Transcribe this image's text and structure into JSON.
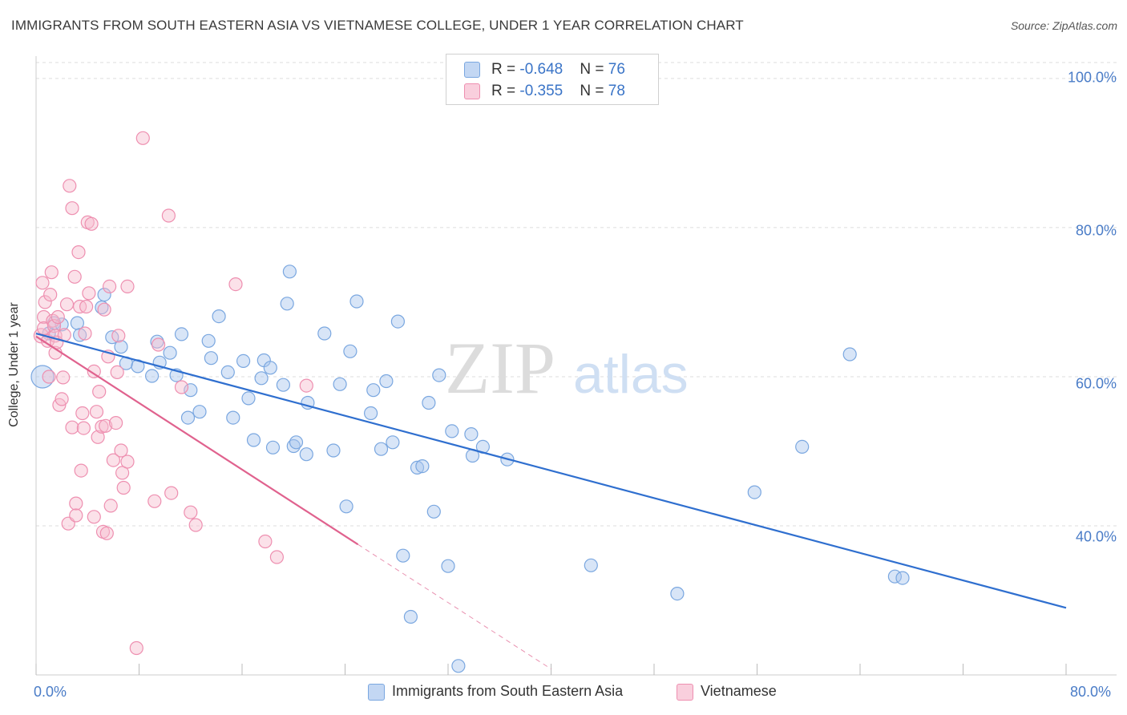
{
  "chart_data": {
    "type": "scatter",
    "title": "IMMIGRANTS FROM SOUTH EASTERN ASIA VS VIETNAMESE COLLEGE, UNDER 1 YEAR CORRELATION CHART",
    "source": "Source: ZipAtlas.com",
    "xlabel": "",
    "ylabel": "College, Under 1 year",
    "xlim": [
      0,
      80
    ],
    "ylim": [
      20,
      103
    ],
    "x_tick_labels": [
      "0.0%",
      "80.0%"
    ],
    "y_ticks": [
      40,
      60,
      80,
      100
    ],
    "y_tick_labels": [
      "40.0%",
      "60.0%",
      "80.0%",
      "100.0%"
    ],
    "grid": true,
    "watermark": {
      "zip": "ZIP",
      "atlas": "atlas"
    },
    "legend": {
      "rows": [
        {
          "r_label": "R = ",
          "r_value": "-0.648",
          "n_label": "N = ",
          "n_value": "76"
        },
        {
          "r_label": "R = ",
          "r_value": "-0.355",
          "n_label": "N = ",
          "n_value": "78"
        }
      ]
    },
    "series": [
      {
        "name": "Immigrants from South Eastern Asia",
        "color": "#7aa7e0",
        "fill": "#a8c6ee",
        "line_color": "#2f6fcf",
        "trend": {
          "x0": 0,
          "y0": 65.8,
          "x1": 80,
          "y1": 29.0
        },
        "points": [
          [
            0.5,
            60.0,
            14
          ],
          [
            1.0,
            65.8,
            8
          ],
          [
            1.4,
            67.2,
            8
          ],
          [
            2.0,
            67.0,
            8
          ],
          [
            3.2,
            67.2,
            8
          ],
          [
            3.4,
            65.6,
            8
          ],
          [
            5.1,
            69.3,
            8
          ],
          [
            5.3,
            71.0,
            8
          ],
          [
            5.9,
            65.3,
            8
          ],
          [
            7.0,
            61.8,
            8
          ],
          [
            6.6,
            64.0,
            8
          ],
          [
            7.9,
            61.4,
            8
          ],
          [
            9.0,
            60.1,
            8
          ],
          [
            9.6,
            61.9,
            8
          ],
          [
            9.4,
            64.7,
            8
          ],
          [
            10.4,
            63.2,
            8
          ],
          [
            11.3,
            65.7,
            8
          ],
          [
            10.9,
            60.2,
            8
          ],
          [
            12.0,
            58.2,
            8
          ],
          [
            11.8,
            54.5,
            8
          ],
          [
            12.7,
            55.3,
            8
          ],
          [
            13.4,
            64.8,
            8
          ],
          [
            13.6,
            62.5,
            8
          ],
          [
            14.2,
            68.1,
            8
          ],
          [
            14.9,
            60.6,
            8
          ],
          [
            15.3,
            54.5,
            8
          ],
          [
            16.1,
            62.1,
            8
          ],
          [
            16.5,
            57.1,
            8
          ],
          [
            16.9,
            51.5,
            8
          ],
          [
            17.5,
            59.8,
            8
          ],
          [
            17.7,
            62.2,
            8
          ],
          [
            18.2,
            61.2,
            8
          ],
          [
            18.4,
            50.5,
            8
          ],
          [
            19.2,
            58.9,
            8
          ],
          [
            19.5,
            69.8,
            8
          ],
          [
            19.7,
            74.1,
            8
          ],
          [
            20.0,
            50.7,
            8
          ],
          [
            20.2,
            51.2,
            8
          ],
          [
            21.0,
            49.6,
            8
          ],
          [
            21.1,
            56.5,
            8
          ],
          [
            22.4,
            65.8,
            8
          ],
          [
            23.1,
            50.1,
            8
          ],
          [
            23.6,
            59.0,
            8
          ],
          [
            24.1,
            42.6,
            8
          ],
          [
            24.4,
            63.4,
            8
          ],
          [
            24.9,
            70.1,
            8
          ],
          [
            26.0,
            55.1,
            8
          ],
          [
            26.2,
            58.2,
            8
          ],
          [
            26.8,
            50.3,
            8
          ],
          [
            27.2,
            59.4,
            8
          ],
          [
            27.7,
            51.2,
            8
          ],
          [
            28.1,
            67.4,
            8
          ],
          [
            28.5,
            36.0,
            8
          ],
          [
            29.1,
            27.8,
            8
          ],
          [
            29.6,
            47.8,
            8
          ],
          [
            30.0,
            48.0,
            8
          ],
          [
            30.5,
            56.5,
            8
          ],
          [
            30.9,
            41.9,
            8
          ],
          [
            31.3,
            60.2,
            8
          ],
          [
            32.0,
            34.6,
            8
          ],
          [
            32.3,
            52.7,
            8
          ],
          [
            32.8,
            21.2,
            8
          ],
          [
            33.8,
            52.3,
            8
          ],
          [
            33.9,
            49.4,
            8
          ],
          [
            34.7,
            50.6,
            8
          ],
          [
            36.6,
            48.9,
            8
          ],
          [
            43.1,
            34.7,
            8
          ],
          [
            49.8,
            30.9,
            8
          ],
          [
            55.8,
            44.5,
            8
          ],
          [
            59.5,
            50.6,
            8
          ],
          [
            63.2,
            63.0,
            8
          ],
          [
            66.7,
            33.2,
            8
          ],
          [
            67.3,
            33.0,
            8
          ]
        ]
      },
      {
        "name": "Vietnamese",
        "color": "#ee8fb0",
        "fill": "#f6bccf",
        "line_color": "#e0628e",
        "trend": {
          "x0": 0,
          "y0": 65.4,
          "x1": 25.0,
          "y1": 37.5
        },
        "trend_ext": {
          "x0": 25.0,
          "y0": 37.5,
          "x1": 40.0,
          "y1": 20.8
        },
        "points": [
          [
            0.4,
            65.5,
            9
          ],
          [
            0.5,
            72.6,
            8
          ],
          [
            0.6,
            68.0,
            8
          ],
          [
            0.6,
            66.5,
            8
          ],
          [
            0.7,
            70.0,
            8
          ],
          [
            0.9,
            64.8,
            8
          ],
          [
            1.0,
            60.0,
            8
          ],
          [
            1.1,
            71.0,
            8
          ],
          [
            1.2,
            74.0,
            8
          ],
          [
            1.3,
            67.5,
            8
          ],
          [
            1.4,
            66.8,
            8
          ],
          [
            1.5,
            65.5,
            8
          ],
          [
            1.5,
            63.2,
            8
          ],
          [
            1.6,
            64.6,
            8
          ],
          [
            1.7,
            68.0,
            8
          ],
          [
            1.8,
            56.2,
            8
          ],
          [
            2.0,
            57.0,
            8
          ],
          [
            2.1,
            59.9,
            8
          ],
          [
            2.2,
            65.6,
            8
          ],
          [
            2.4,
            69.7,
            8
          ],
          [
            2.5,
            40.3,
            8
          ],
          [
            2.6,
            85.6,
            8
          ],
          [
            2.8,
            82.6,
            8
          ],
          [
            2.8,
            53.2,
            8
          ],
          [
            3.0,
            73.4,
            8
          ],
          [
            3.1,
            43.0,
            8
          ],
          [
            3.1,
            41.4,
            8
          ],
          [
            3.3,
            76.7,
            8
          ],
          [
            3.4,
            69.4,
            8
          ],
          [
            3.5,
            47.4,
            8
          ],
          [
            3.6,
            55.1,
            8
          ],
          [
            3.7,
            53.1,
            8
          ],
          [
            3.8,
            65.8,
            8
          ],
          [
            3.9,
            69.4,
            8
          ],
          [
            4.0,
            80.7,
            8
          ],
          [
            4.1,
            71.2,
            8
          ],
          [
            4.3,
            80.5,
            8
          ],
          [
            4.5,
            60.7,
            8
          ],
          [
            4.5,
            41.2,
            8
          ],
          [
            4.7,
            55.3,
            8
          ],
          [
            4.8,
            51.9,
            8
          ],
          [
            4.9,
            58.0,
            8
          ],
          [
            5.1,
            53.3,
            8
          ],
          [
            5.2,
            39.2,
            8
          ],
          [
            5.3,
            69.0,
            8
          ],
          [
            5.4,
            53.4,
            8
          ],
          [
            5.5,
            39.0,
            8
          ],
          [
            5.6,
            62.7,
            8
          ],
          [
            5.7,
            72.1,
            8
          ],
          [
            5.8,
            42.7,
            8
          ],
          [
            6.0,
            48.8,
            8
          ],
          [
            6.2,
            53.8,
            8
          ],
          [
            6.4,
            65.5,
            8
          ],
          [
            6.3,
            60.6,
            8
          ],
          [
            6.6,
            50.1,
            8
          ],
          [
            6.7,
            47.1,
            8
          ],
          [
            6.8,
            45.1,
            8
          ],
          [
            7.1,
            48.6,
            8
          ],
          [
            7.1,
            72.1,
            8
          ],
          [
            8.3,
            92.0,
            8
          ],
          [
            9.2,
            43.3,
            8
          ],
          [
            9.5,
            64.3,
            8
          ],
          [
            10.3,
            81.6,
            8
          ],
          [
            10.5,
            44.4,
            8
          ],
          [
            11.3,
            58.6,
            8
          ],
          [
            12.0,
            41.8,
            8
          ],
          [
            12.4,
            40.1,
            8
          ],
          [
            15.5,
            72.4,
            8
          ],
          [
            17.8,
            37.9,
            8
          ],
          [
            18.7,
            35.8,
            8
          ],
          [
            21.0,
            58.8,
            8
          ],
          [
            7.8,
            23.6,
            8
          ]
        ]
      }
    ]
  }
}
